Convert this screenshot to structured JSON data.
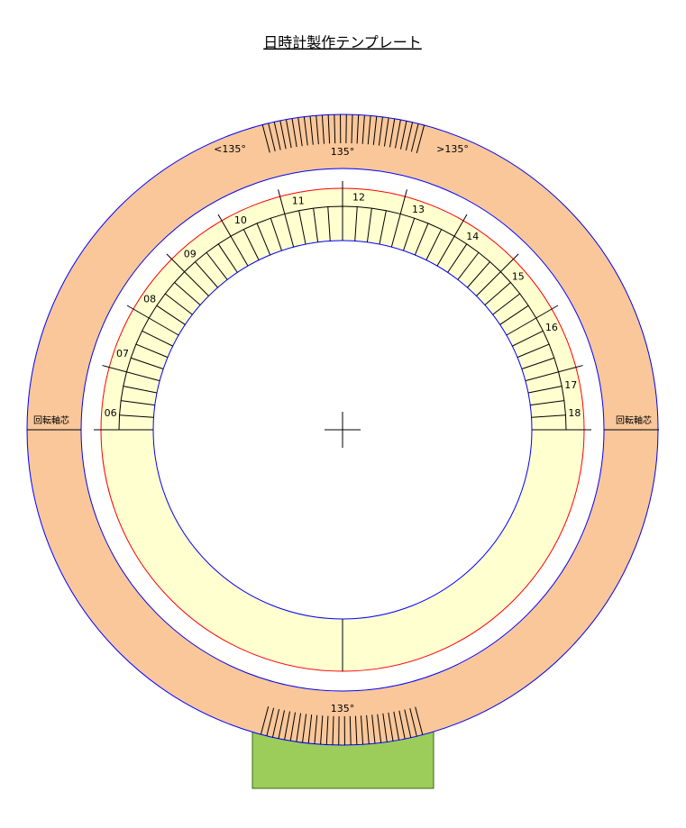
{
  "title": "日時計製作テンプレート",
  "ring_labels": {
    "top": "135°",
    "top_left": "<135°",
    "top_right": ">135°",
    "bottom": "135°"
  },
  "axis_labels": {
    "left": "回転軸芯",
    "right": "回転軸芯"
  },
  "hour_labels": [
    "06",
    "07",
    "08",
    "09",
    "10",
    "11",
    "12",
    "13",
    "14",
    "15",
    "16",
    "17",
    "18"
  ]
}
